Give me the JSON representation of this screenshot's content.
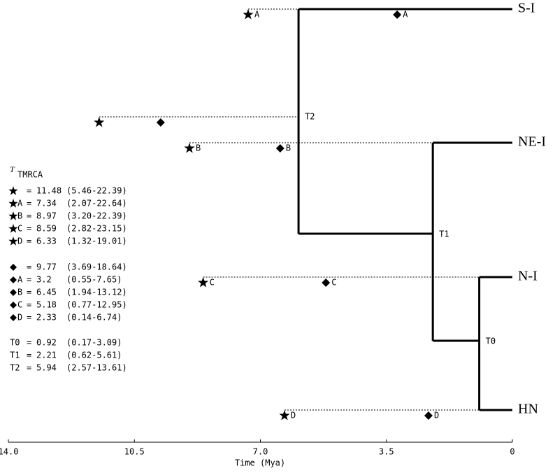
{
  "chart_data": {
    "type": "tree",
    "x_label": "Time (Mya)",
    "xlim": [
      14,
      0
    ],
    "xticks": [
      {
        "value": 14,
        "label": "14.0"
      },
      {
        "value": 10.5,
        "label": "10.5"
      },
      {
        "value": 7,
        "label": "7.0"
      },
      {
        "value": 3.5,
        "label": "3.5"
      },
      0
    ],
    "leaves": [
      "S-I",
      "NE-I",
      "N-I",
      "HN"
    ],
    "legend_title": "T",
    "legend_subscript": "TMRCA",
    "equals": "=",
    "star_estimates": [
      {
        "label": "",
        "mean": 11.48,
        "interval": "(5.46-22.39)"
      },
      {
        "label": "A",
        "mean": 7.34,
        "interval": "(2.07-22.64)"
      },
      {
        "label": "B",
        "mean": 8.97,
        "interval": "(3.20-22.39)"
      },
      {
        "label": "C",
        "mean": 8.59,
        "interval": "(2.82-23.15)"
      },
      {
        "label": "D",
        "mean": 6.33,
        "interval": "(1.32-19.01)"
      }
    ],
    "diamond_estimates": [
      {
        "label": "",
        "mean": 9.77,
        "interval": "(3.69-18.64)"
      },
      {
        "label": "A",
        "mean": 3.2,
        "interval": "(0.55-7.65)"
      },
      {
        "label": "B",
        "mean": 6.45,
        "interval": "(1.94-13.12)"
      },
      {
        "label": "C",
        "mean": 5.18,
        "interval": "(0.77-12.95)"
      },
      {
        "label": "D",
        "mean": 2.33,
        "interval": "(0.14-6.74)"
      }
    ],
    "nodes": [
      {
        "name": "T0",
        "mean": 0.92,
        "interval": "(0.17-3.09)"
      },
      {
        "name": "T1",
        "mean": 2.21,
        "interval": "(0.62-5.61)"
      },
      {
        "name": "T2",
        "mean": 5.94,
        "interval": "(2.57-13.61)"
      }
    ]
  }
}
